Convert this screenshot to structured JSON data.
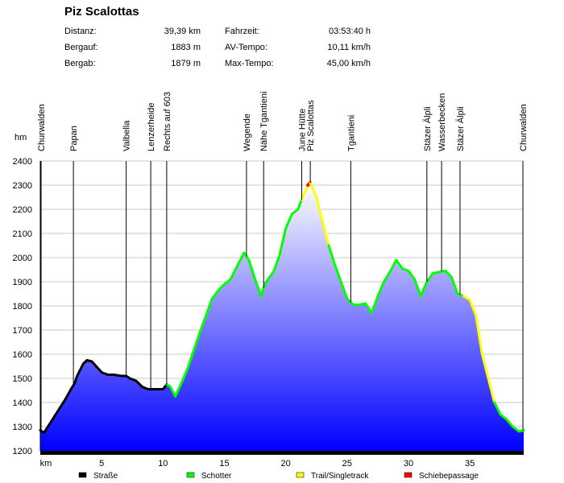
{
  "title": "Piz Scalottas",
  "stats": [
    {
      "label": "Distanz:",
      "value": "39,39 km",
      "label2": "Fahrzeit:",
      "value2": "03:53:40 h"
    },
    {
      "label": "Bergauf:",
      "value": "1883 m",
      "label2": "AV-Tempo:",
      "value2": "10,11 km/h"
    },
    {
      "label": "Bergab:",
      "value": "1879 m",
      "label2": "Max-Tempo:",
      "value2": "45,00 km/h"
    }
  ],
  "chart_data": {
    "type": "area",
    "xlabel": "km",
    "ylabel": "hm",
    "xlim": [
      0,
      39.39
    ],
    "ylim": [
      1200,
      2400
    ],
    "x_ticks": [
      5,
      10,
      15,
      20,
      25,
      30,
      35
    ],
    "y_ticks": [
      1200,
      1300,
      1400,
      1500,
      1600,
      1700,
      1800,
      1900,
      2000,
      2100,
      2200,
      2300,
      2400
    ],
    "fill_top_color": "#ffffff",
    "fill_bottom_color": "#0000ff",
    "profile": {
      "x": [
        0,
        0.3,
        1,
        2,
        2.5,
        2.8,
        3,
        3.5,
        3.8,
        4.2,
        5,
        5.5,
        6,
        6.6,
        7,
        7.3,
        7.8,
        8.3,
        8.8,
        9,
        9.5,
        10,
        10.3,
        10.6,
        11,
        11.5,
        12,
        13,
        14,
        14.6,
        15,
        15.5,
        16,
        16.6,
        17,
        17.5,
        18,
        18.3,
        18.7,
        19,
        19.5,
        20,
        20.5,
        21,
        21.3,
        21.8,
        22,
        22.5,
        23,
        23.5,
        24,
        24.5,
        25,
        25.5,
        26,
        26.5,
        27,
        27.5,
        28,
        28.6,
        29,
        29.5,
        30,
        30.5,
        31,
        31.5,
        32,
        32.5,
        33,
        33.5,
        34,
        34.5,
        35,
        35.5,
        36,
        36.5,
        37,
        37.5,
        38,
        38.5,
        39,
        39.39
      ],
      "y": [
        1285,
        1275,
        1330,
        1410,
        1455,
        1480,
        1510,
        1560,
        1575,
        1570,
        1525,
        1515,
        1515,
        1510,
        1510,
        1500,
        1490,
        1465,
        1455,
        1455,
        1455,
        1455,
        1475,
        1465,
        1425,
        1480,
        1540,
        1690,
        1830,
        1870,
        1890,
        1910,
        1960,
        2020,
        1990,
        1910,
        1840,
        1890,
        1920,
        1940,
        2010,
        2120,
        2180,
        2200,
        2240,
        2300,
        2310,
        2250,
        2150,
        2050,
        1970,
        1900,
        1830,
        1805,
        1805,
        1810,
        1770,
        1840,
        1900,
        1950,
        1990,
        1955,
        1945,
        1910,
        1840,
        1900,
        1935,
        1940,
        1945,
        1920,
        1850,
        1840,
        1825,
        1760,
        1600,
        1500,
        1400,
        1350,
        1330,
        1300,
        1280,
        1285
      ]
    },
    "surface_legend": [
      {
        "name": "Straße",
        "color": "#000000"
      },
      {
        "name": "Schotter",
        "color": "#00ff00"
      },
      {
        "name": "Trail/Singletrack",
        "color": "#ffff00"
      },
      {
        "name": "Schiebepassage",
        "color": "#ff0000"
      }
    ],
    "surface_segments": [
      {
        "surface": "Straße",
        "from_km": 0,
        "to_km": 10.3
      },
      {
        "surface": "Schotter",
        "from_km": 10.3,
        "to_km": 21.3
      },
      {
        "surface": "Trail/Singletrack",
        "from_km": 21.3,
        "to_km": 21.8
      },
      {
        "surface": "Schiebepassage",
        "from_km": 21.8,
        "to_km": 22.0
      },
      {
        "surface": "Trail/Singletrack",
        "from_km": 22.0,
        "to_km": 23.5
      },
      {
        "surface": "Schotter",
        "from_km": 23.5,
        "to_km": 34.5
      },
      {
        "surface": "Trail/Singletrack",
        "from_km": 34.5,
        "to_km": 37.0
      },
      {
        "surface": "Schotter",
        "from_km": 37.0,
        "to_km": 39.39
      }
    ],
    "waypoints": [
      {
        "name": "Churwalden",
        "km": 0
      },
      {
        "name": "Papan",
        "km": 2.7
      },
      {
        "name": "Valbella",
        "km": 7.0
      },
      {
        "name": "Lenzerheide",
        "km": 9.0
      },
      {
        "name": "Rechts auf 603",
        "km": 10.3
      },
      {
        "name": "Wegende",
        "km": 16.8
      },
      {
        "name": "Nähe Tgantieni",
        "km": 18.2
      },
      {
        "name": "June Hütte",
        "km": 21.3
      },
      {
        "name": "Piz Scalottas",
        "km": 22.0
      },
      {
        "name": "Tgantieni",
        "km": 25.3
      },
      {
        "name": "Stäzer Älpli",
        "km": 31.5
      },
      {
        "name": "Wasserbecken",
        "km": 32.7
      },
      {
        "name": "Stäzer Älpli",
        "km": 34.2
      },
      {
        "name": "Churwalden",
        "km": 39.39
      }
    ]
  }
}
